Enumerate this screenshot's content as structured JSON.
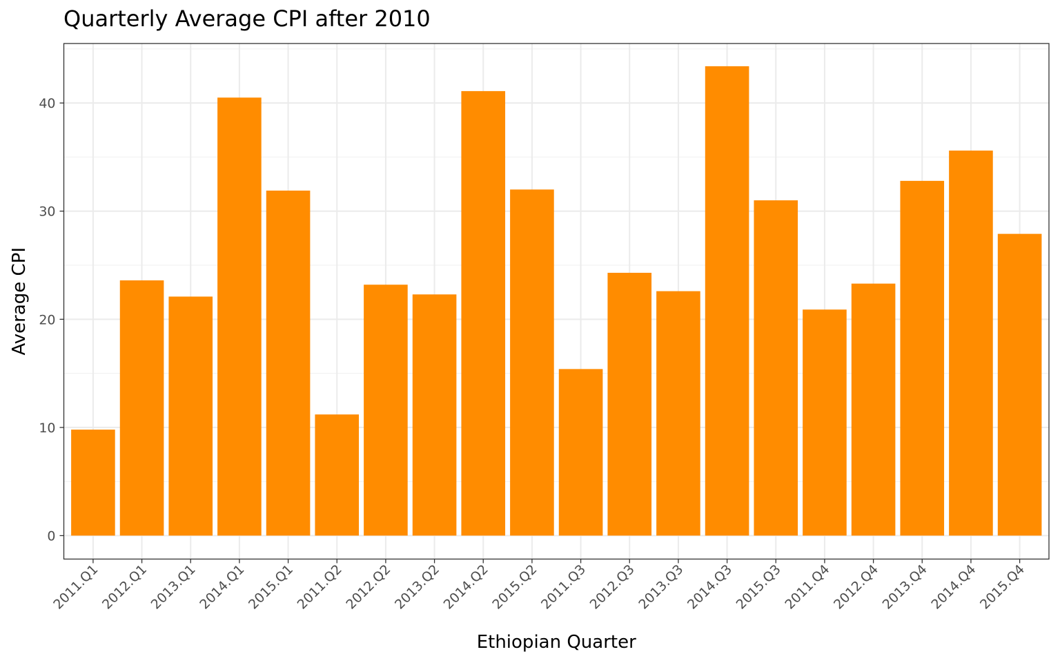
{
  "chart_data": {
    "type": "bar",
    "title": "Quarterly Average CPI after 2010",
    "xlabel": "Ethiopian Quarter",
    "ylabel": "Average CPI",
    "categories": [
      "2011.Q1",
      "2012.Q1",
      "2013.Q1",
      "2014.Q1",
      "2015.Q1",
      "2011.Q2",
      "2012.Q2",
      "2013.Q2",
      "2014.Q2",
      "2015.Q2",
      "2011.Q3",
      "2012.Q3",
      "2013.Q3",
      "2014.Q3",
      "2015.Q3",
      "2011.Q4",
      "2012.Q4",
      "2013.Q4",
      "2014.Q4",
      "2015.Q4"
    ],
    "values": [
      9.8,
      23.6,
      22.1,
      40.5,
      31.9,
      11.2,
      23.2,
      22.3,
      41.1,
      32.0,
      15.4,
      24.3,
      22.6,
      43.4,
      31.0,
      20.9,
      23.3,
      32.8,
      35.6,
      27.9
    ],
    "ylim": [
      -2.17,
      45.5
    ],
    "yticks": [
      0,
      10,
      20,
      30,
      40
    ],
    "bar_color": "#FF8C00",
    "grid": true,
    "legend": "none"
  }
}
